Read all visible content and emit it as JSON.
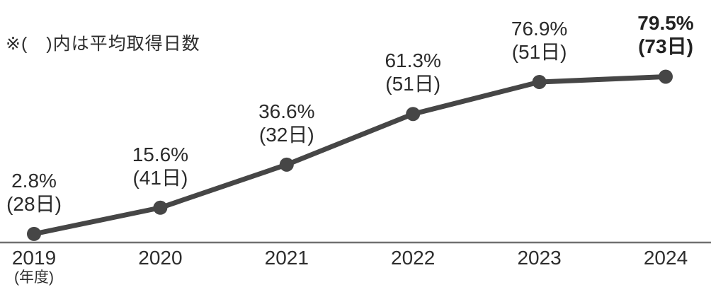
{
  "note": "※(　)内は平均取得日数",
  "colors": {
    "line": "#464646",
    "marker": "#464646",
    "axis": "#707070",
    "text": "#2b2b2b"
  },
  "chart_data": {
    "type": "line",
    "x": [
      "2019",
      "2020",
      "2021",
      "2022",
      "2023",
      "2024"
    ],
    "x_axis_unit": "(年度)",
    "values": [
      2.8,
      15.6,
      36.6,
      61.3,
      76.9,
      79.5
    ],
    "days": [
      28,
      41,
      32,
      51,
      51,
      73
    ],
    "point_labels": [
      {
        "pct": "2.8%",
        "days": "(28日)",
        "bold": false
      },
      {
        "pct": "15.6%",
        "days": "(41日)",
        "bold": false
      },
      {
        "pct": "36.6%",
        "days": "(32日)",
        "bold": false
      },
      {
        "pct": "61.3%",
        "days": "(51日)",
        "bold": false
      },
      {
        "pct": "76.9%",
        "days": "(51日)",
        "bold": false
      },
      {
        "pct": "79.5%",
        "days": "(73日)",
        "bold": true
      }
    ],
    "title": "",
    "xlabel": "",
    "ylabel": "",
    "ylim": [
      0,
      85
    ],
    "grid": false,
    "legend": "none"
  }
}
